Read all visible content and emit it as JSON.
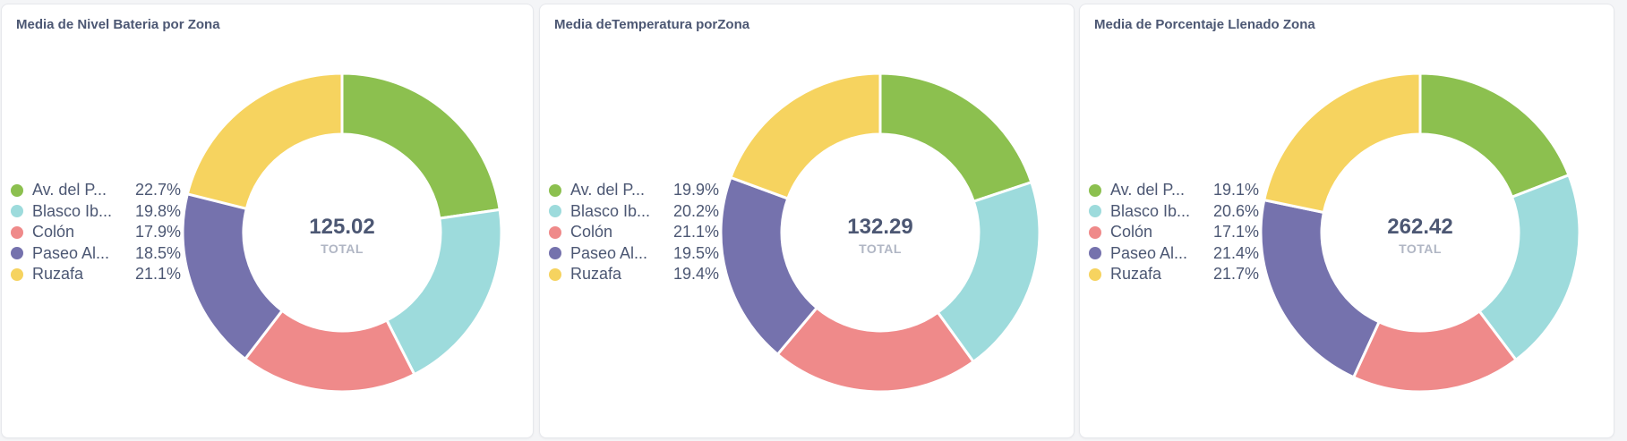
{
  "colors": {
    "green": "#8cc04f",
    "cyan": "#9ddbdc",
    "red": "#ef8a8a",
    "purple": "#7572ad",
    "yellow": "#f6d35f"
  },
  "chart_data": [
    {
      "type": "pie",
      "title": "Media de Nivel Bateria por Zona",
      "total": "125.02",
      "total_label": "TOTAL",
      "categories": [
        "Av. del P...",
        "Blasco Ib...",
        "Colón",
        "Paseo Al...",
        "Ruzafa"
      ],
      "percent_labels": [
        "22.7%",
        "19.8%",
        "17.9%",
        "18.5%",
        "21.1%"
      ],
      "values": [
        22.7,
        19.8,
        17.9,
        18.5,
        21.1
      ],
      "colors": [
        "#8cc04f",
        "#9ddbdc",
        "#ef8a8a",
        "#7572ad",
        "#f6d35f"
      ],
      "legend": "left"
    },
    {
      "type": "pie",
      "title": "Media deTemperatura porZona",
      "total": "132.29",
      "total_label": "TOTAL",
      "categories": [
        "Av. del P...",
        "Blasco Ib...",
        "Colón",
        "Paseo Al...",
        "Ruzafa"
      ],
      "percent_labels": [
        "19.9%",
        "20.2%",
        "21.1%",
        "19.5%",
        "19.4%"
      ],
      "values": [
        19.9,
        20.2,
        21.1,
        19.5,
        19.4
      ],
      "colors": [
        "#8cc04f",
        "#9ddbdc",
        "#ef8a8a",
        "#7572ad",
        "#f6d35f"
      ],
      "legend": "left"
    },
    {
      "type": "pie",
      "title": "Media de Porcentaje Llenado Zona",
      "total": "262.42",
      "total_label": "TOTAL",
      "categories": [
        "Av. del P...",
        "Blasco Ib...",
        "Colón",
        "Paseo Al...",
        "Ruzafa"
      ],
      "percent_labels": [
        "19.1%",
        "20.6%",
        "17.1%",
        "21.4%",
        "21.7%"
      ],
      "values": [
        19.1,
        20.6,
        17.1,
        21.4,
        21.7
      ],
      "colors": [
        "#8cc04f",
        "#9ddbdc",
        "#ef8a8a",
        "#7572ad",
        "#f6d35f"
      ],
      "legend": "left"
    }
  ]
}
